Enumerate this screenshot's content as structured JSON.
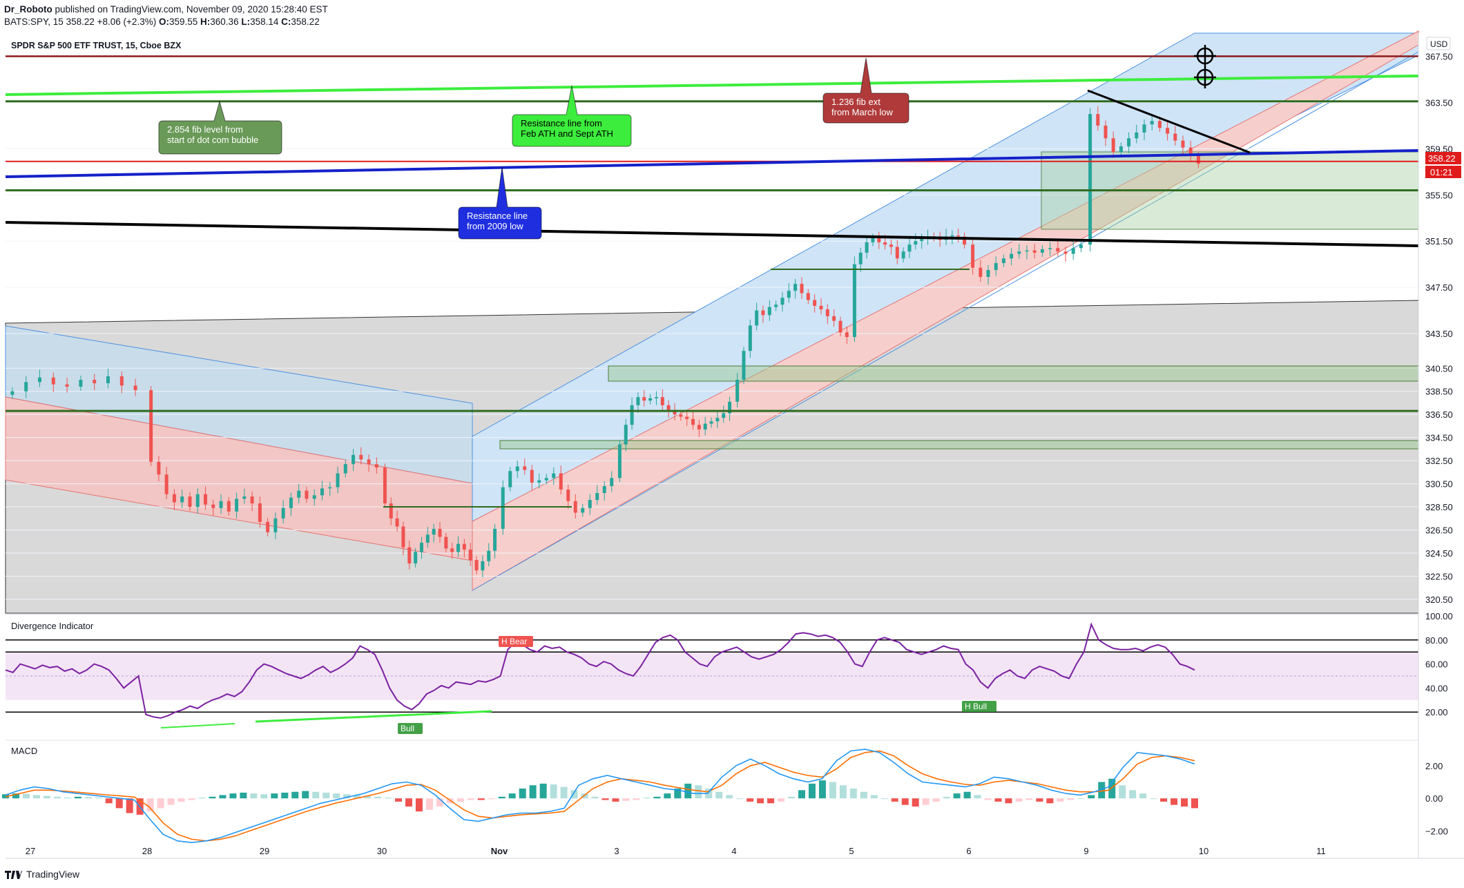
{
  "header": {
    "author": "Dr_Roboto",
    "published_text": "published on TradingView.com, November 09, 2020 15:28:40 EST",
    "symbol_line_prefix": "BATS:SPY, 15",
    "last_price": "358.22",
    "change": "+8.06 (+2.3%)",
    "open_label": "O:",
    "open": "359.55",
    "high_label": "H:",
    "high": "360.36",
    "low_label": "L:",
    "low": "358.14",
    "close_label": "C:",
    "close": "358.22"
  },
  "chart_title": "SPDR S&P 500 ETF TRUST, 15, Cboe BZX",
  "currency": "USD",
  "price_badge": "358.22",
  "countdown_badge": "01:21",
  "footer_brand": "TradingView",
  "colors": {
    "up": "#26a69a",
    "down": "#ef5350",
    "rsi": "#7b1fa2",
    "macd": "#2196f3",
    "signal": "#ff6d00",
    "green_line": "#2e6b1f",
    "lime_line": "#3ded3d",
    "red_line": "#e01b1b",
    "maroon_line": "#8b1a1a",
    "blue_line": "#1421c9"
  },
  "annotations": [
    {
      "text": "2.854 fib level from\nstart of dot com bubble",
      "color": "#6a9a58"
    },
    {
      "text": "Resistance line from\nFeb ATH and Sept ATH",
      "color": "#3ded3d"
    },
    {
      "text": "1.236 fib ext\nfrom March low",
      "color": "#b03a3a"
    },
    {
      "text": "Resistance line\nfrom 2009 low",
      "color": "#1f2fe0"
    }
  ],
  "panes": {
    "rsi_title": "Divergence Indicator",
    "macd_title": "MACD",
    "rsi_labels": [
      "H Bear",
      "Bull",
      "H Bull"
    ]
  },
  "chart_data": [
    {
      "type": "candlestick",
      "title": "SPDR S&P 500 ETF TRUST, 15, Cboe BZX",
      "x_tick_labels": [
        "27",
        "28",
        "29",
        "30",
        "Nov",
        "3",
        "4",
        "5",
        "6",
        "9",
        "10",
        "11"
      ],
      "y_tick_labels": [
        "367.50",
        "363.50",
        "359.50",
        "355.50",
        "351.50",
        "347.50",
        "343.50",
        "340.50",
        "338.50",
        "336.50",
        "334.50",
        "332.50",
        "330.50",
        "328.50",
        "326.50",
        "324.50",
        "322.50",
        "320.50"
      ],
      "ylim": [
        319.3,
        369.5
      ],
      "series": [
        {
          "name": "BATS:SPY",
          "close": [
            338.5,
            339.3,
            339.7,
            339.1,
            338.9,
            339.5,
            339.2,
            339.8,
            339.0,
            338.6,
            332.4,
            331.3,
            329.6,
            328.9,
            329.4,
            328.5,
            329.6,
            328.7,
            328.4,
            329.0,
            328.1,
            329.2,
            329.4,
            328.8,
            327.2,
            326.3,
            327.5,
            328.4,
            329.3,
            329.9,
            329.2,
            329.5,
            330.1,
            330.2,
            331.4,
            332.2,
            333.0,
            332.6,
            332.2,
            331.9,
            328.8,
            327.5,
            326.8,
            325.0,
            323.6,
            324.6,
            325.4,
            326.1,
            326.6,
            325.9,
            324.9,
            324.6,
            325.3,
            324.8,
            323.9,
            323.0,
            323.8,
            324.7,
            326.6,
            330.2,
            331.6,
            332.0,
            331.7,
            330.6,
            330.8,
            331.0,
            331.4,
            330.0,
            329.0,
            328.0,
            328.4,
            329.1,
            329.7,
            330.3,
            331.0,
            333.9,
            335.6,
            337.3,
            338.0,
            337.7,
            337.9,
            338.0,
            337.3,
            336.9,
            336.5,
            336.3,
            336.1,
            335.6,
            335.2,
            335.7,
            335.9,
            336.2,
            336.6,
            337.6,
            339.5,
            342.0,
            344.2,
            345.5,
            345.1,
            345.8,
            346.0,
            346.6,
            347.2,
            347.8,
            347.0,
            346.4,
            345.9,
            345.6,
            345.0,
            344.6,
            343.6,
            343.2,
            349.5,
            350.5,
            351.4,
            351.8,
            351.4,
            351.2,
            351.0,
            350.0,
            350.6,
            351.2,
            351.5,
            351.7,
            351.9,
            351.8,
            351.6,
            351.9,
            352.0,
            351.9,
            351.2,
            349.2,
            348.4,
            349.0,
            349.6,
            350.0,
            350.4,
            350.6,
            350.7,
            350.5,
            350.8,
            350.9,
            350.6,
            350.4,
            350.9,
            351.2,
            362.5,
            361.5,
            360.4,
            359.2,
            359.7,
            360.4,
            360.9,
            361.6,
            361.9,
            361.3,
            360.8,
            360.2,
            359.6,
            358.9,
            358.2
          ]
        }
      ],
      "overlays": [
        {
          "name": "2.854 fib level from start of dot com bubble",
          "price": 363.6
        },
        {
          "name": "Resistance line from Feb ATH and Sept ATH",
          "from": 363.8,
          "to": 366.4
        },
        {
          "name": "1.236 fib ext from March low",
          "price": 367.5
        },
        {
          "name": "Resistance line from 2009 low",
          "from": 356.6,
          "to": 359.0
        },
        {
          "name": "support",
          "price": 355.9
        },
        {
          "name": "support",
          "price": 336.8
        },
        {
          "name": "red level",
          "price": 358.4
        }
      ]
    },
    {
      "type": "line",
      "title": "Divergence Indicator",
      "y_tick_labels": [
        "100.00",
        "80.00",
        "60.00",
        "40.00",
        "20.00"
      ],
      "ylim": [
        0,
        100
      ],
      "bands": [
        30,
        70
      ],
      "levels": [
        20,
        80,
        70
      ],
      "series": [
        {
          "name": "",
          "values": [
            55,
            53,
            60,
            58,
            56,
            59,
            57,
            58,
            54,
            56,
            52,
            55,
            60,
            58,
            55,
            48,
            40,
            45,
            50,
            18,
            16,
            15,
            17,
            20,
            22,
            25,
            23,
            27,
            30,
            32,
            35,
            33,
            37,
            45,
            55,
            60,
            58,
            55,
            52,
            50,
            48,
            51,
            55,
            58,
            53,
            56,
            60,
            65,
            75,
            72,
            68,
            55,
            40,
            30,
            25,
            22,
            27,
            35,
            38,
            42,
            40,
            45,
            44,
            43,
            46,
            45,
            47,
            50,
            72,
            78,
            76,
            72,
            70,
            75,
            73,
            74,
            70,
            68,
            65,
            60,
            58,
            62,
            60,
            55,
            52,
            50,
            58,
            68,
            78,
            82,
            84,
            80,
            70,
            65,
            60,
            58,
            66,
            70,
            72,
            74,
            70,
            66,
            64,
            66,
            68,
            72,
            78,
            85,
            86,
            85,
            83,
            84,
            82,
            78,
            70,
            60,
            58,
            70,
            80,
            82,
            80,
            78,
            72,
            70,
            68,
            70,
            72,
            75,
            73,
            72,
            60,
            55,
            45,
            40,
            48,
            52,
            55,
            50,
            48,
            55,
            58,
            56,
            54,
            50,
            48,
            60,
            70,
            93,
            80,
            76,
            73,
            72,
            72,
            73,
            71,
            74,
            76,
            74,
            68,
            60,
            58,
            55
          ]
        }
      ]
    },
    {
      "type": "bar",
      "title": "MACD",
      "y_tick_labels": [
        "2.00",
        "0.00",
        "-2.00"
      ],
      "ylim": [
        -3.2,
        3.3
      ],
      "series": [
        {
          "name": "histogram",
          "values": [
            0.25,
            0.3,
            0.28,
            0.2,
            0.15,
            0.1,
            0.05,
            0.1,
            0.08,
            0.05,
            -0.3,
            -0.6,
            -0.9,
            -1.0,
            -0.8,
            -0.6,
            -0.4,
            -0.2,
            -0.1,
            0.05,
            0.1,
            0.2,
            0.3,
            0.35,
            0.3,
            0.25,
            0.3,
            0.35,
            0.4,
            0.45,
            0.4,
            0.35,
            0.3,
            0.25,
            0.2,
            0.15,
            0.1,
            0.05,
            -0.2,
            -0.5,
            -0.8,
            -0.7,
            -0.5,
            -0.3,
            -0.2,
            -0.1,
            -0.1,
            -0.05,
            0.1,
            0.3,
            0.6,
            0.8,
            0.9,
            0.85,
            0.7,
            0.5,
            0.3,
            0.1,
            -0.1,
            -0.2,
            -0.15,
            -0.1,
            0.05,
            0.1,
            0.3,
            0.6,
            0.9,
            0.8,
            0.6,
            0.4,
            0.2,
            0.0,
            -0.2,
            -0.3,
            -0.3,
            -0.2,
            0.1,
            0.5,
            0.9,
            1.1,
            1.0,
            0.8,
            0.6,
            0.4,
            0.2,
            0.0,
            -0.2,
            -0.4,
            -0.5,
            -0.4,
            -0.2,
            0.1,
            0.3,
            0.4,
            0.2,
            -0.1,
            -0.2,
            -0.3,
            -0.2,
            -0.1,
            -0.2,
            -0.3,
            -0.2,
            -0.1,
            0.0,
            0.2,
            1.0,
            1.2,
            0.8,
            0.5,
            0.3,
            0.0,
            -0.2,
            -0.4,
            -0.5,
            -0.6
          ]
        },
        {
          "name": "MACD",
          "values": [
            0.2,
            0.5,
            0.7,
            0.6,
            0.4,
            0.3,
            0.2,
            0.1,
            0.0,
            -0.1,
            -1.2,
            -2.2,
            -2.6,
            -2.7,
            -2.6,
            -2.4,
            -2.1,
            -1.8,
            -1.5,
            -1.2,
            -0.9,
            -0.6,
            -0.3,
            -0.1,
            0.1,
            0.3,
            0.6,
            0.9,
            1.0,
            0.8,
            0.2,
            -0.6,
            -1.3,
            -1.4,
            -1.2,
            -1.0,
            -0.9,
            -0.9,
            -0.8,
            -0.6,
            0.8,
            1.2,
            1.4,
            1.2,
            1.0,
            0.8,
            0.6,
            0.5,
            0.3,
            0.3,
            1.3,
            2.0,
            2.4,
            2.0,
            1.5,
            1.2,
            1.0,
            1.2,
            2.3,
            2.9,
            3.0,
            2.8,
            2.2,
            1.5,
            1.0,
            0.9,
            0.8,
            0.7,
            0.9,
            1.3,
            1.2,
            1.0,
            0.8,
            0.5,
            0.3,
            0.2,
            0.4,
            0.7,
            1.9,
            2.8,
            2.7,
            2.6,
            2.4,
            2.1
          ]
        },
        {
          "name": "Signal",
          "values": [
            0.1,
            0.3,
            0.5,
            0.5,
            0.45,
            0.38,
            0.3,
            0.22,
            0.15,
            0.08,
            -0.5,
            -1.5,
            -2.2,
            -2.5,
            -2.6,
            -2.5,
            -2.3,
            -2.0,
            -1.7,
            -1.4,
            -1.1,
            -0.8,
            -0.55,
            -0.3,
            -0.1,
            0.1,
            0.3,
            0.55,
            0.8,
            0.85,
            0.5,
            -0.1,
            -0.7,
            -1.1,
            -1.2,
            -1.1,
            -1.0,
            -0.95,
            -0.9,
            -0.8,
            -0.1,
            0.6,
            1.0,
            1.2,
            1.1,
            1.0,
            0.8,
            0.65,
            0.5,
            0.4,
            0.8,
            1.5,
            2.0,
            2.2,
            1.9,
            1.6,
            1.4,
            1.3,
            1.8,
            2.5,
            2.8,
            2.9,
            2.6,
            2.0,
            1.5,
            1.2,
            1.0,
            0.85,
            0.8,
            1.0,
            1.1,
            1.0,
            0.9,
            0.7,
            0.5,
            0.4,
            0.4,
            0.5,
            1.2,
            2.1,
            2.5,
            2.6,
            2.5,
            2.3
          ]
        }
      ]
    }
  ]
}
